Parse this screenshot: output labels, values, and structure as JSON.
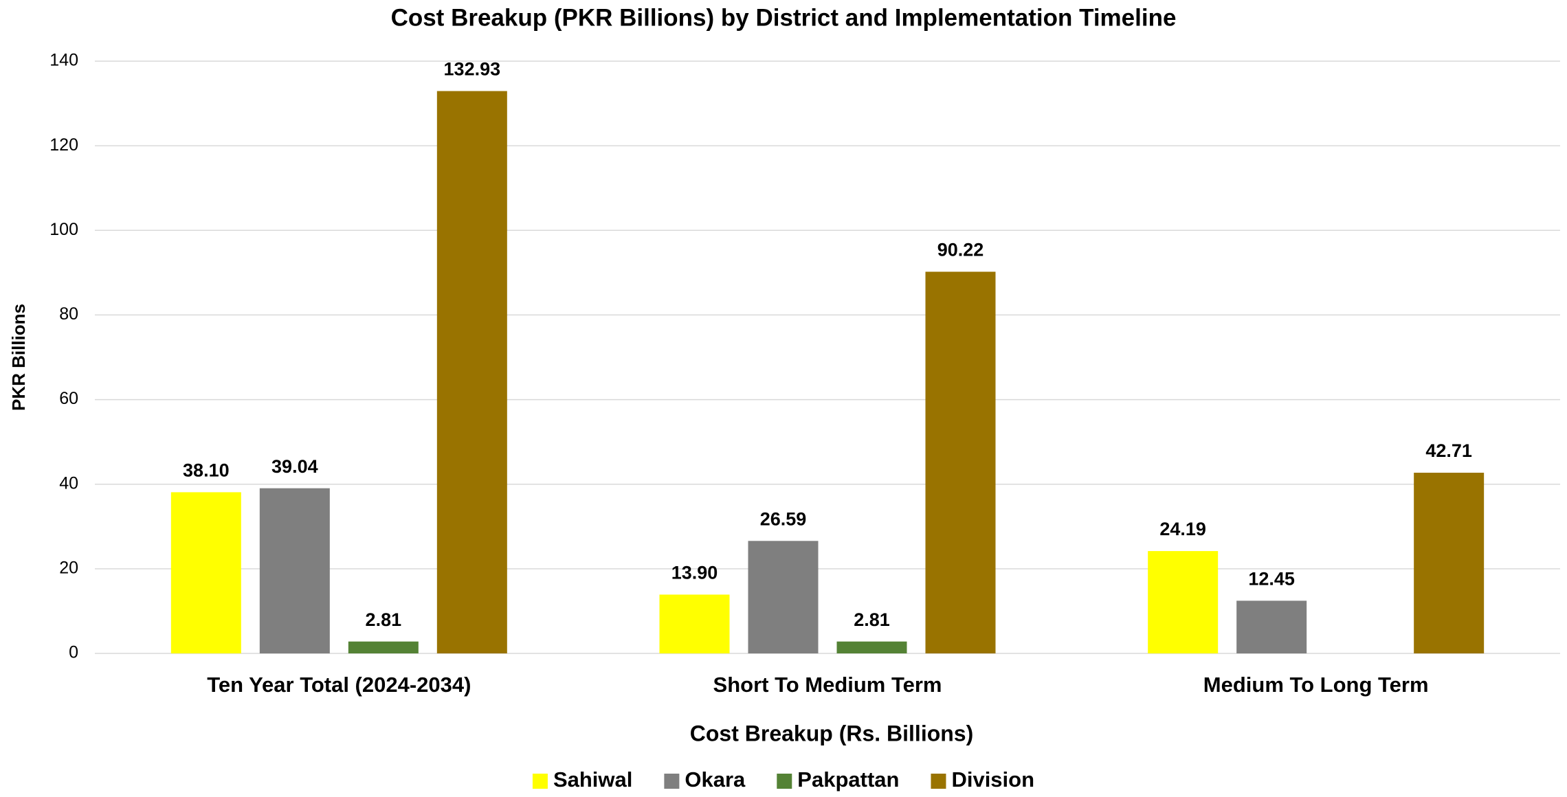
{
  "chart_data": {
    "type": "bar",
    "title": "Cost Breakup (PKR Billions) by District and Implementation Timeline",
    "x_label": "Cost Breakup (Rs. Billions)",
    "y_label": "PKR Billions",
    "categories": [
      "Ten Year Total (2024-2034)",
      "Short To Medium Term",
      "Medium To Long Term"
    ],
    "series": [
      {
        "name": "Sahiwal",
        "color": "#ffff00",
        "values": [
          38.1,
          13.9,
          24.19
        ],
        "value_labels": [
          "38.10",
          "13.90",
          "24.19"
        ]
      },
      {
        "name": "Okara",
        "color": "#7f7f7f",
        "values": [
          39.04,
          26.59,
          12.45
        ],
        "value_labels": [
          "39.04",
          "26.59",
          "12.45"
        ]
      },
      {
        "name": "Pakpattan",
        "color": "#548235",
        "values": [
          2.81,
          2.81,
          null
        ],
        "value_labels": [
          "2.81",
          "2.81",
          null
        ]
      },
      {
        "name": "Division",
        "color": "#997300",
        "values": [
          132.93,
          90.22,
          42.71
        ],
        "value_labels": [
          "132.93",
          "90.22",
          "42.71"
        ]
      }
    ],
    "ylim": [
      0,
      140
    ],
    "yticks": [
      0,
      20,
      40,
      60,
      80,
      100,
      120,
      140
    ],
    "grid": true,
    "legend": "bottom"
  }
}
